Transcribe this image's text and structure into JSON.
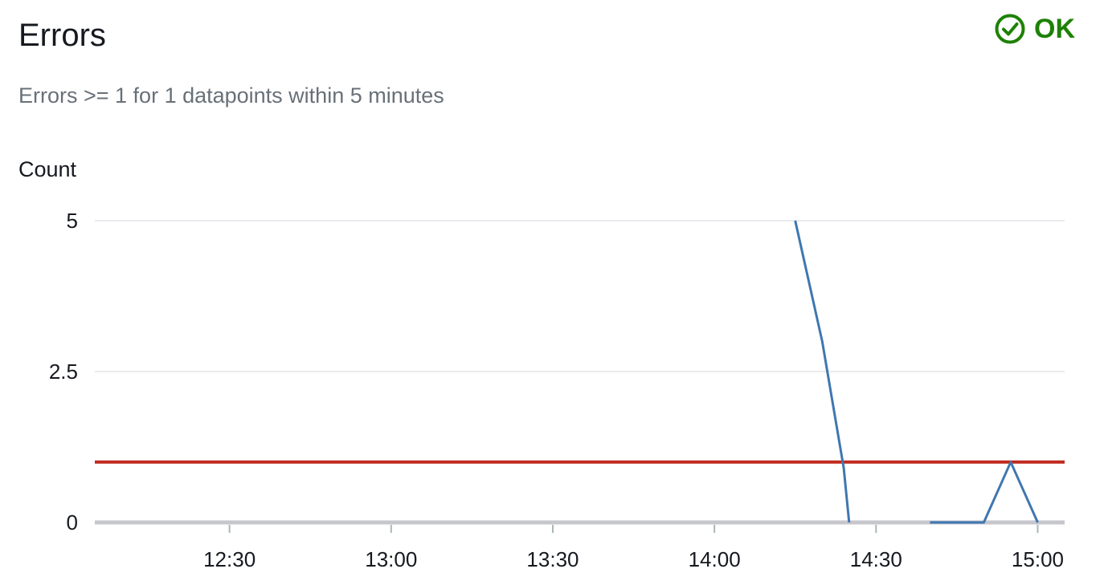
{
  "header": {
    "title": "Errors",
    "status_label": "OK",
    "status_icon": "check-circle-icon",
    "status_color": "#1d8102"
  },
  "description": "Errors >= 1 for 1 datapoints within 5 minutes",
  "chart_data": {
    "type": "line",
    "ylabel": "Count",
    "xlabel": "",
    "yticks": [
      0,
      2.5,
      5
    ],
    "ytick_labels": [
      "0",
      "2.5",
      "5"
    ],
    "ylim": [
      0,
      5
    ],
    "xlim": [
      "12:05",
      "15:05"
    ],
    "xticks": [
      "12:30",
      "13:00",
      "13:30",
      "14:00",
      "14:30",
      "15:00"
    ],
    "grid": true,
    "threshold": {
      "value": 1,
      "color": "#c0291f"
    },
    "series": [
      {
        "color": "#3f77b0",
        "segments": [
          {
            "x": [
              "14:15",
              "14:20",
              "14:24",
              "14:25"
            ],
            "y": [
              5,
              3,
              0.9,
              0
            ]
          },
          {
            "x": [
              "14:40",
              "14:50",
              "14:55",
              "15:00"
            ],
            "y": [
              0,
              0,
              1,
              0
            ]
          }
        ]
      }
    ]
  }
}
